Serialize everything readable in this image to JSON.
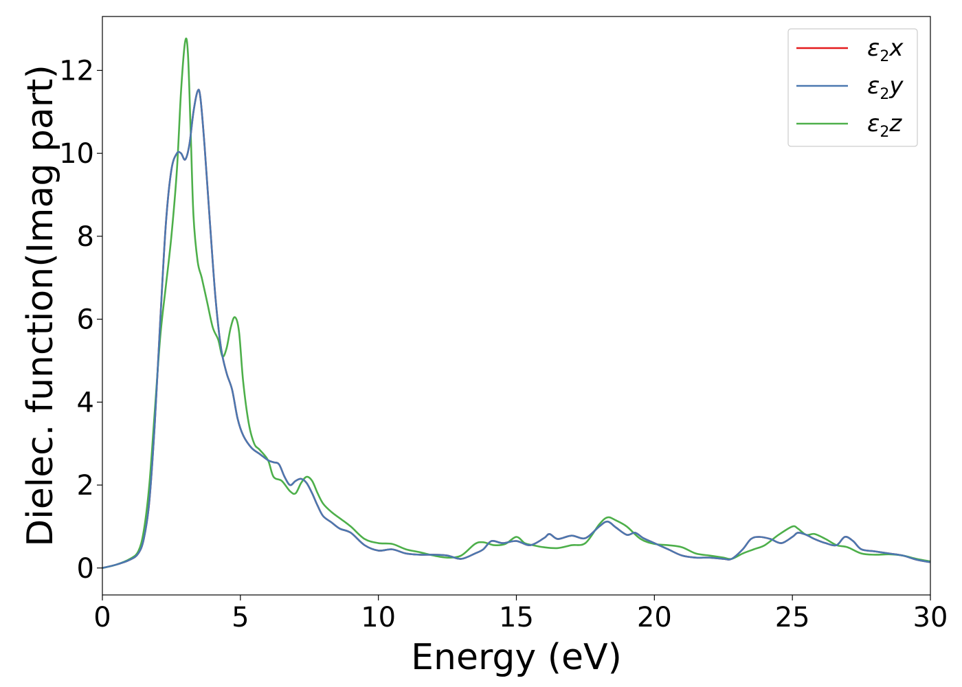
{
  "chart_data": {
    "type": "line",
    "xlabel": "Energy (eV)",
    "ylabel": "Dielec. function(Imag part)",
    "xlim": [
      0,
      30
    ],
    "ylim": [
      -0.65,
      13.3
    ],
    "xticks": [
      0,
      5,
      10,
      15,
      20,
      25,
      30
    ],
    "yticks": [
      0,
      2,
      4,
      6,
      8,
      10,
      12
    ],
    "grid": false,
    "legend_position": "top-right",
    "series": [
      {
        "name": "ε₂x",
        "legend_base": "ε",
        "legend_sub": "2",
        "legend_suffix": "x",
        "color": "#e41a1c",
        "x": [
          0,
          0.5,
          1.0,
          1.3,
          1.5,
          1.7,
          1.9,
          2.1,
          2.3,
          2.5,
          2.7,
          2.85,
          3.0,
          3.15,
          3.3,
          3.45,
          3.55,
          3.7,
          3.9,
          4.1,
          4.3,
          4.5,
          4.7,
          4.9,
          5.1,
          5.4,
          5.7,
          6.0,
          6.2,
          6.4,
          6.6,
          6.8,
          7.0,
          7.2,
          7.4,
          7.6,
          7.8,
          8.0,
          8.3,
          8.6,
          9.0,
          9.5,
          10.0,
          10.5,
          11.0,
          11.5,
          12.0,
          12.5,
          13.0,
          13.5,
          13.8,
          14.1,
          14.5,
          15.0,
          15.5,
          16.0,
          16.2,
          16.5,
          17.0,
          17.5,
          18.0,
          18.3,
          18.6,
          19.0,
          19.3,
          19.6,
          20.0,
          20.5,
          21.0,
          21.5,
          22.0,
          22.5,
          22.8,
          23.2,
          23.5,
          23.8,
          24.2,
          24.6,
          25.0,
          25.2,
          25.5,
          25.8,
          26.2,
          26.6,
          26.9,
          27.2,
          27.5,
          28.0,
          28.5,
          29.0,
          29.5,
          30.0
        ],
        "y": [
          0.0,
          0.08,
          0.2,
          0.35,
          0.7,
          1.6,
          3.5,
          6.0,
          8.3,
          9.6,
          10.0,
          10.0,
          9.85,
          10.2,
          11.0,
          11.5,
          11.35,
          10.2,
          8.3,
          6.5,
          5.3,
          4.7,
          4.3,
          3.6,
          3.2,
          2.9,
          2.75,
          2.6,
          2.55,
          2.5,
          2.2,
          2.0,
          2.1,
          2.15,
          2.05,
          1.8,
          1.5,
          1.25,
          1.1,
          0.95,
          0.85,
          0.55,
          0.42,
          0.45,
          0.35,
          0.32,
          0.32,
          0.3,
          0.22,
          0.35,
          0.45,
          0.65,
          0.6,
          0.65,
          0.55,
          0.72,
          0.82,
          0.7,
          0.78,
          0.72,
          1.0,
          1.12,
          0.98,
          0.8,
          0.85,
          0.72,
          0.6,
          0.45,
          0.3,
          0.25,
          0.25,
          0.22,
          0.22,
          0.45,
          0.7,
          0.75,
          0.7,
          0.6,
          0.75,
          0.85,
          0.8,
          0.7,
          0.6,
          0.55,
          0.75,
          0.65,
          0.45,
          0.4,
          0.35,
          0.3,
          0.2,
          0.14
        ]
      },
      {
        "name": "ε₂y",
        "legend_base": "ε",
        "legend_sub": "2",
        "legend_suffix": "y",
        "color": "#4a78b0",
        "x": [
          0,
          0.5,
          1.0,
          1.3,
          1.5,
          1.7,
          1.9,
          2.1,
          2.3,
          2.5,
          2.7,
          2.85,
          3.0,
          3.15,
          3.3,
          3.45,
          3.55,
          3.7,
          3.9,
          4.1,
          4.3,
          4.5,
          4.7,
          4.9,
          5.1,
          5.4,
          5.7,
          6.0,
          6.2,
          6.4,
          6.6,
          6.8,
          7.0,
          7.2,
          7.4,
          7.6,
          7.8,
          8.0,
          8.3,
          8.6,
          9.0,
          9.5,
          10.0,
          10.5,
          11.0,
          11.5,
          12.0,
          12.5,
          13.0,
          13.5,
          13.8,
          14.1,
          14.5,
          15.0,
          15.5,
          16.0,
          16.2,
          16.5,
          17.0,
          17.5,
          18.0,
          18.3,
          18.6,
          19.0,
          19.3,
          19.6,
          20.0,
          20.5,
          21.0,
          21.5,
          22.0,
          22.5,
          22.8,
          23.2,
          23.5,
          23.8,
          24.2,
          24.6,
          25.0,
          25.2,
          25.5,
          25.8,
          26.2,
          26.6,
          26.9,
          27.2,
          27.5,
          28.0,
          28.5,
          29.0,
          29.5,
          30.0
        ],
        "y": [
          0.0,
          0.08,
          0.2,
          0.35,
          0.7,
          1.6,
          3.5,
          6.0,
          8.3,
          9.6,
          10.0,
          10.0,
          9.85,
          10.2,
          11.0,
          11.5,
          11.35,
          10.2,
          8.3,
          6.5,
          5.3,
          4.7,
          4.3,
          3.6,
          3.2,
          2.9,
          2.75,
          2.6,
          2.55,
          2.5,
          2.2,
          2.0,
          2.1,
          2.15,
          2.05,
          1.8,
          1.5,
          1.25,
          1.1,
          0.95,
          0.85,
          0.55,
          0.42,
          0.45,
          0.35,
          0.32,
          0.32,
          0.3,
          0.22,
          0.35,
          0.45,
          0.65,
          0.6,
          0.65,
          0.55,
          0.72,
          0.82,
          0.7,
          0.78,
          0.72,
          1.0,
          1.12,
          0.98,
          0.8,
          0.85,
          0.72,
          0.6,
          0.45,
          0.3,
          0.25,
          0.25,
          0.22,
          0.22,
          0.45,
          0.7,
          0.75,
          0.7,
          0.6,
          0.75,
          0.85,
          0.8,
          0.7,
          0.6,
          0.55,
          0.75,
          0.65,
          0.45,
          0.4,
          0.35,
          0.3,
          0.2,
          0.14
        ]
      },
      {
        "name": "ε₂z",
        "legend_base": "ε",
        "legend_sub": "2",
        "legend_suffix": "z",
        "color": "#4daf4a",
        "x": [
          0,
          0.5,
          1.0,
          1.3,
          1.5,
          1.7,
          1.9,
          2.1,
          2.3,
          2.5,
          2.7,
          2.85,
          3.0,
          3.1,
          3.2,
          3.3,
          3.45,
          3.6,
          3.8,
          4.0,
          4.2,
          4.35,
          4.5,
          4.65,
          4.8,
          4.95,
          5.1,
          5.3,
          5.5,
          5.7,
          6.0,
          6.2,
          6.5,
          6.8,
          7.0,
          7.2,
          7.4,
          7.6,
          7.8,
          8.0,
          8.3,
          8.6,
          9.0,
          9.5,
          10.0,
          10.5,
          11.0,
          11.5,
          12.0,
          12.5,
          13.0,
          13.5,
          13.8,
          14.2,
          14.6,
          15.0,
          15.3,
          15.6,
          16.0,
          16.5,
          17.0,
          17.5,
          18.0,
          18.3,
          18.6,
          19.0,
          19.5,
          20.0,
          20.5,
          21.0,
          21.5,
          22.0,
          22.5,
          22.8,
          23.2,
          23.6,
          24.0,
          24.5,
          25.0,
          25.2,
          25.5,
          25.8,
          26.2,
          26.6,
          27.0,
          27.5,
          28.0,
          28.5,
          29.0,
          29.5,
          30.0
        ],
        "y": [
          0.0,
          0.08,
          0.22,
          0.4,
          0.9,
          2.0,
          3.8,
          5.6,
          6.8,
          8.0,
          9.6,
          11.5,
          12.7,
          12.4,
          10.5,
          8.5,
          7.4,
          7.0,
          6.4,
          5.8,
          5.5,
          5.1,
          5.3,
          5.8,
          6.05,
          5.7,
          4.5,
          3.5,
          3.0,
          2.85,
          2.6,
          2.2,
          2.1,
          1.85,
          1.8,
          2.05,
          2.2,
          2.1,
          1.8,
          1.55,
          1.35,
          1.2,
          1.0,
          0.7,
          0.6,
          0.58,
          0.45,
          0.38,
          0.3,
          0.25,
          0.3,
          0.58,
          0.62,
          0.55,
          0.58,
          0.75,
          0.6,
          0.55,
          0.5,
          0.48,
          0.55,
          0.6,
          1.05,
          1.22,
          1.15,
          1.0,
          0.7,
          0.58,
          0.55,
          0.5,
          0.35,
          0.3,
          0.25,
          0.22,
          0.35,
          0.45,
          0.55,
          0.8,
          1.0,
          0.95,
          0.8,
          0.82,
          0.7,
          0.55,
          0.5,
          0.35,
          0.32,
          0.33,
          0.3,
          0.22,
          0.16
        ]
      }
    ]
  }
}
